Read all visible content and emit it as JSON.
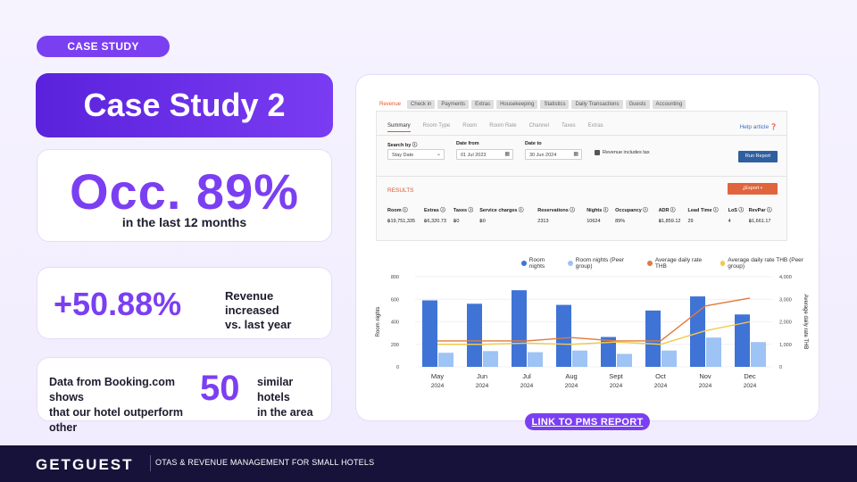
{
  "tag": "CASE STUDY",
  "title": "Case Study 2",
  "occupancy": {
    "value": "Occ. 89%",
    "subtitle": "in the last 12 months"
  },
  "revenue": {
    "value": "+50.88%",
    "text_line1": "Revenue increased",
    "text_line2": "vs. last year"
  },
  "booking": {
    "left_line1": "Data from Booking.com shows",
    "left_line2": "that our hotel outperform other",
    "number": "50",
    "right_line1": "similar hotels",
    "right_line2": "in the area"
  },
  "pms": {
    "tabs": [
      "Revenue",
      "Check in",
      "Payments",
      "Extras",
      "Housekeeping",
      "Statistics",
      "Daily Transactions",
      "Guests",
      "Accounting"
    ],
    "subtabs": [
      "Summary",
      "Room Type",
      "Room",
      "Room Rate",
      "Channel",
      "Taxes",
      "Extras"
    ],
    "help_label": "Help article",
    "search_by_label": "Search by",
    "search_by_value": "Stay Date",
    "date_from_label": "Date from",
    "date_from_value": "01 Jul 2023",
    "date_to_label": "Date to",
    "date_to_value": "30 Jun 2024",
    "tax_checkbox_label": "Revenue includes tax",
    "run_report_label": "Run Report",
    "results_title": "RESULTS",
    "export_label": "Export",
    "columns": [
      "Room",
      "Extras",
      "Taxes",
      "Service charges",
      "Reservations",
      "Nights",
      "Occupancy",
      "ADR",
      "Lead Time",
      "LoS",
      "RevPar"
    ],
    "row": [
      "฿19,751,335",
      "฿6,320.73",
      "฿0",
      "฿0",
      "2313",
      "10624",
      "89%",
      "฿1,859.12",
      "29",
      "4",
      "฿1,661.17"
    ]
  },
  "colors": {
    "accent": "#7b3ff2",
    "room_nights": "#3f74d6",
    "room_nights_peer": "#9ec3f5",
    "adr": "#e07b3d",
    "adr_peer": "#f2c94c",
    "footer_bg": "#17123a"
  },
  "chart_data": {
    "type": "bar",
    "categories": [
      "May\n2024",
      "Jun\n2024",
      "Jul\n2024",
      "Aug\n2024",
      "Sept\n2024",
      "Oct\n2024",
      "Nov\n2024",
      "Dec\n2024"
    ],
    "category_labels": [
      [
        "May",
        "2024"
      ],
      [
        "Jun",
        "2024"
      ],
      [
        "Jul",
        "2024"
      ],
      [
        "Aug",
        "2024"
      ],
      [
        "Sept",
        "2024"
      ],
      [
        "Oct",
        "2024"
      ],
      [
        "Nov",
        "2024"
      ],
      [
        "Dec",
        "2024"
      ]
    ],
    "series": [
      {
        "name": "Room nights",
        "type": "bar",
        "axis": "left",
        "values": [
          590,
          560,
          680,
          550,
          265,
          500,
          625,
          465
        ]
      },
      {
        "name": "Room nights (Peer group)",
        "type": "bar",
        "axis": "left",
        "values": [
          125,
          140,
          130,
          145,
          115,
          145,
          260,
          220
        ]
      },
      {
        "name": "Average daily rate THB",
        "type": "line",
        "axis": "right",
        "values": [
          1150,
          1150,
          1150,
          1300,
          1150,
          1150,
          2700,
          3050
        ]
      },
      {
        "name": "Average daily rate THB (Peer group)",
        "type": "line",
        "axis": "right",
        "values": [
          1000,
          1000,
          1050,
          1000,
          1100,
          1000,
          1600,
          2000
        ]
      }
    ],
    "ylabel": "Room nights",
    "y2label": "Average daily rate THB",
    "ylim": [
      0,
      800
    ],
    "y2lim": [
      0,
      4000
    ],
    "yticks": [
      0,
      200,
      400,
      600,
      800
    ],
    "y2ticks": [
      0,
      1000,
      2000,
      3000,
      4000
    ],
    "y2tick_labels": [
      "0",
      "1,000",
      "2,000",
      "3,000",
      "4,000"
    ],
    "legend_position": "top-right",
    "grid": true
  },
  "link_label": "LINK TO PMS REPORT",
  "footer": {
    "brand": "GETGUEST",
    "tagline": "OTAS & REVENUE MANAGEMENT FOR SMALL HOTELS"
  }
}
